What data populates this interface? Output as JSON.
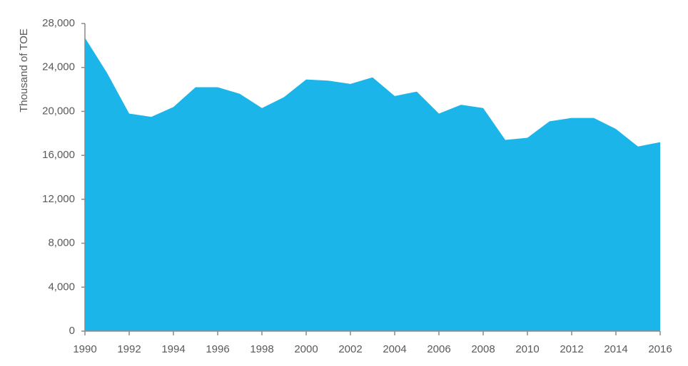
{
  "chart_data": {
    "type": "area",
    "y_label": "Thousand of TOE",
    "color": "#1cb5e9",
    "x": [
      1990,
      1991,
      1992,
      1993,
      1994,
      1995,
      1996,
      1997,
      1998,
      1999,
      2000,
      2001,
      2002,
      2003,
      2004,
      2005,
      2006,
      2007,
      2008,
      2009,
      2010,
      2011,
      2012,
      2013,
      2014,
      2015,
      2016
    ],
    "values": [
      26700,
      23500,
      19800,
      19500,
      20400,
      22200,
      22200,
      21600,
      20300,
      21300,
      22900,
      22800,
      22500,
      23100,
      21400,
      21800,
      19800,
      20600,
      20300,
      17400,
      17600,
      19100,
      19400,
      19400,
      18400,
      16800,
      17200
    ],
    "xlim": [
      1990,
      2016
    ],
    "xticks": [
      1990,
      1992,
      1994,
      1996,
      1998,
      2000,
      2002,
      2004,
      2006,
      2008,
      2010,
      2012,
      2014,
      2016
    ],
    "ylim": [
      0,
      28000
    ],
    "yticks": [
      0,
      {
        "value": 4000,
        "label": "4,000"
      },
      {
        "value": 8000,
        "label": "8,000"
      },
      {
        "value": 12000,
        "label": "12,000"
      },
      {
        "value": 16000,
        "label": "16,000"
      },
      {
        "value": 20000,
        "label": "20,000"
      },
      {
        "value": 24000,
        "label": "24,000"
      },
      {
        "value": 28000,
        "label": "28,000"
      }
    ],
    "grid": false
  }
}
